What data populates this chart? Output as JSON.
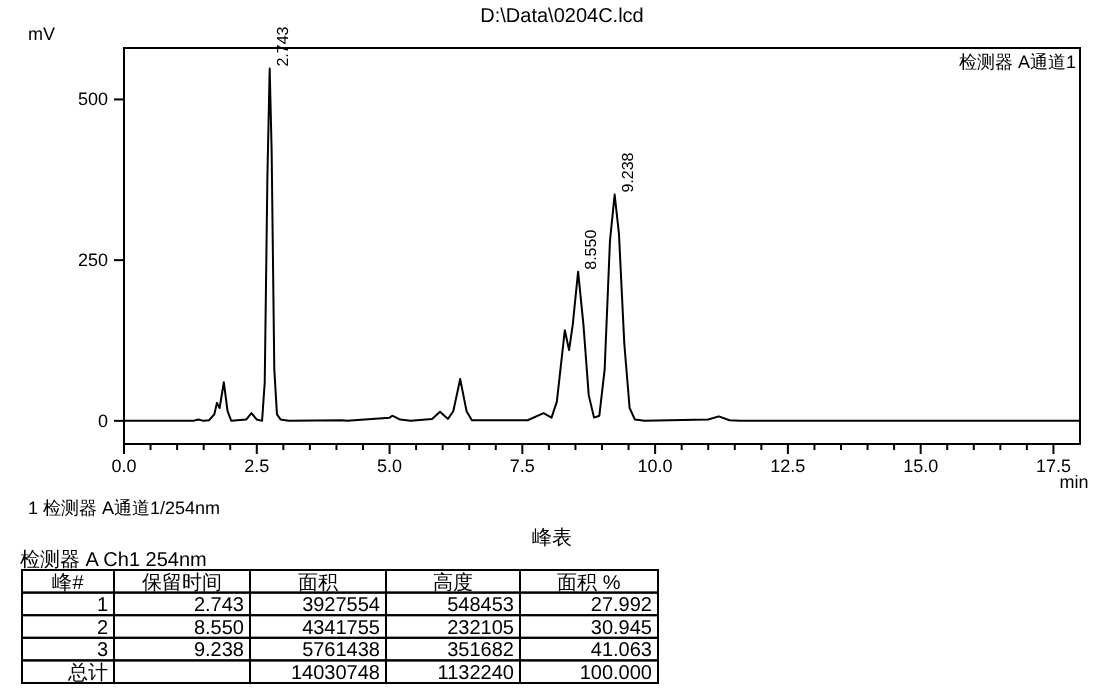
{
  "chart_data": [
    {
      "type": "line",
      "title": "D:\\Data\\0204C.lcd",
      "xlabel": "min",
      "ylabel": "mV",
      "legend": "top right",
      "series": [
        {
          "name": "检测器 A通道1",
          "color": "#000000",
          "x": [
            0,
            1.3,
            1.4,
            1.5,
            1.6,
            1.7,
            1.75,
            1.8,
            1.88,
            1.95,
            2.02,
            2.3,
            2.4,
            2.5,
            2.6,
            2.65,
            2.7,
            2.743,
            2.78,
            2.83,
            2.88,
            2.95,
            3.1,
            4.1,
            4.2,
            5.0,
            5.05,
            5.2,
            5.4,
            5.8,
            5.95,
            6.1,
            6.2,
            6.33,
            6.45,
            6.55,
            7.6,
            7.9,
            8.05,
            8.15,
            8.3,
            8.38,
            8.45,
            8.55,
            8.65,
            8.75,
            8.85,
            8.95,
            9.05,
            9.15,
            9.238,
            9.32,
            9.42,
            9.52,
            9.62,
            9.8,
            11.0,
            11.2,
            11.4,
            11.6,
            18
          ],
          "values": [
            0,
            0,
            2,
            0,
            1,
            10,
            28,
            20,
            60,
            15,
            0,
            2,
            12,
            2,
            0,
            60,
            380,
            548,
            420,
            80,
            10,
            2,
            0,
            1,
            0,
            5,
            8,
            2,
            0,
            3,
            14,
            3,
            15,
            65,
            15,
            1,
            1,
            12,
            5,
            30,
            141,
            110,
            150,
            232,
            150,
            40,
            5,
            8,
            80,
            280,
            352,
            290,
            120,
            20,
            2,
            0,
            2,
            7,
            1,
            0,
            0
          ]
        }
      ],
      "xlim": [
        0,
        18
      ],
      "ylim": [
        -36,
        580
      ],
      "xticks": [
        {
          "value": 0,
          "label": "0.0"
        },
        {
          "value": 0.5,
          "label": null
        },
        {
          "value": 1,
          "label": null
        },
        {
          "value": 1.5,
          "label": null
        },
        {
          "value": 2,
          "label": null
        },
        {
          "value": 2.5,
          "label": "2.5"
        },
        {
          "value": 3,
          "label": null
        },
        {
          "value": 3.5,
          "label": null
        },
        {
          "value": 4,
          "label": null
        },
        {
          "value": 4.5,
          "label": null
        },
        {
          "value": 5,
          "label": "5.0"
        },
        {
          "value": 5.5,
          "label": null
        },
        {
          "value": 6,
          "label": null
        },
        {
          "value": 6.5,
          "label": null
        },
        {
          "value": 7,
          "label": null
        },
        {
          "value": 7.5,
          "label": "7.5"
        },
        {
          "value": 8,
          "label": null
        },
        {
          "value": 8.5,
          "label": null
        },
        {
          "value": 9,
          "label": null
        },
        {
          "value": 9.5,
          "label": null
        },
        {
          "value": 10,
          "label": "10.0"
        },
        {
          "value": 10.5,
          "label": null
        },
        {
          "value": 11,
          "label": null
        },
        {
          "value": 11.5,
          "label": null
        },
        {
          "value": 12,
          "label": null
        },
        {
          "value": 12.5,
          "label": "12.5"
        },
        {
          "value": 13,
          "label": null
        },
        {
          "value": 13.5,
          "label": null
        },
        {
          "value": 14,
          "label": null
        },
        {
          "value": 14.5,
          "label": null
        },
        {
          "value": 15,
          "label": "15.0"
        },
        {
          "value": 15.5,
          "label": null
        },
        {
          "value": 16,
          "label": null
        },
        {
          "value": 16.5,
          "label": null
        },
        {
          "value": 17,
          "label": null
        },
        {
          "value": 17.5,
          "label": "17.5"
        }
      ],
      "yticks": [
        0,
        250,
        500
      ],
      "annotations": [
        {
          "text": "2.743",
          "x": 2.743,
          "y": 548
        },
        {
          "text": "8.550",
          "x": 8.55,
          "y": 232
        },
        {
          "text": "9.238",
          "x": 9.238,
          "y": 352
        },
        "1  检测器 A通道1/254nm"
      ]
    },
    {
      "type": "other",
      "title": "峰表",
      "subtitle": "检测器 A Ch1 254nm",
      "categories": [
        "峰#",
        "保留时间",
        "面积",
        "高度",
        "面积 %"
      ],
      "annotations": [
        "1",
        "2.743",
        "3927554",
        "548453",
        "27.992",
        "2",
        "8.550",
        "4341755",
        "232105",
        "30.945",
        "3",
        "9.238",
        "5761438",
        "351682",
        "41.063",
        "总计",
        null,
        "14030748",
        "1132240",
        "100.000"
      ]
    }
  ]
}
